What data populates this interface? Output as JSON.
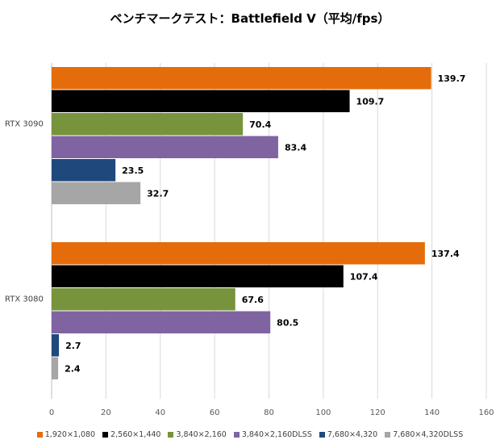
{
  "chart_data": {
    "type": "bar",
    "orientation": "horizontal",
    "title": "ベンチマークテスト：Battlefield V（平均/fps）",
    "categories": [
      "RTX 3090",
      "RTX 3080"
    ],
    "xlim": [
      0,
      160
    ],
    "x_ticks": [
      "0",
      "20",
      "40",
      "60",
      "80",
      "100",
      "120",
      "140",
      "160"
    ],
    "grid": true,
    "legend_position": "bottom",
    "series": [
      {
        "name": "1,920×1,080",
        "color": "#E46C0A",
        "values": [
          139.7,
          137.4
        ],
        "labels": [
          "139.7",
          "137.4"
        ]
      },
      {
        "name": "2,560×1,440",
        "color": "#000000",
        "values": [
          109.7,
          107.4
        ],
        "labels": [
          "109.7",
          "107.4"
        ]
      },
      {
        "name": "3,840×2,160",
        "color": "#77933C",
        "values": [
          70.4,
          67.6
        ],
        "labels": [
          "70.4",
          "67.6"
        ]
      },
      {
        "name": "3,840×2,160DLSS",
        "color": "#8064A2",
        "values": [
          83.4,
          80.5
        ],
        "labels": [
          "83.4",
          "80.5"
        ]
      },
      {
        "name": "7,680×4,320",
        "color": "#1F497D",
        "values": [
          23.5,
          2.7
        ],
        "labels": [
          "23.5",
          "2.7"
        ]
      },
      {
        "name": "7,680×4,320DLSS",
        "color": "#A6A6A6",
        "values": [
          32.7,
          2.4
        ],
        "labels": [
          "32.7",
          "2.4"
        ]
      }
    ]
  }
}
